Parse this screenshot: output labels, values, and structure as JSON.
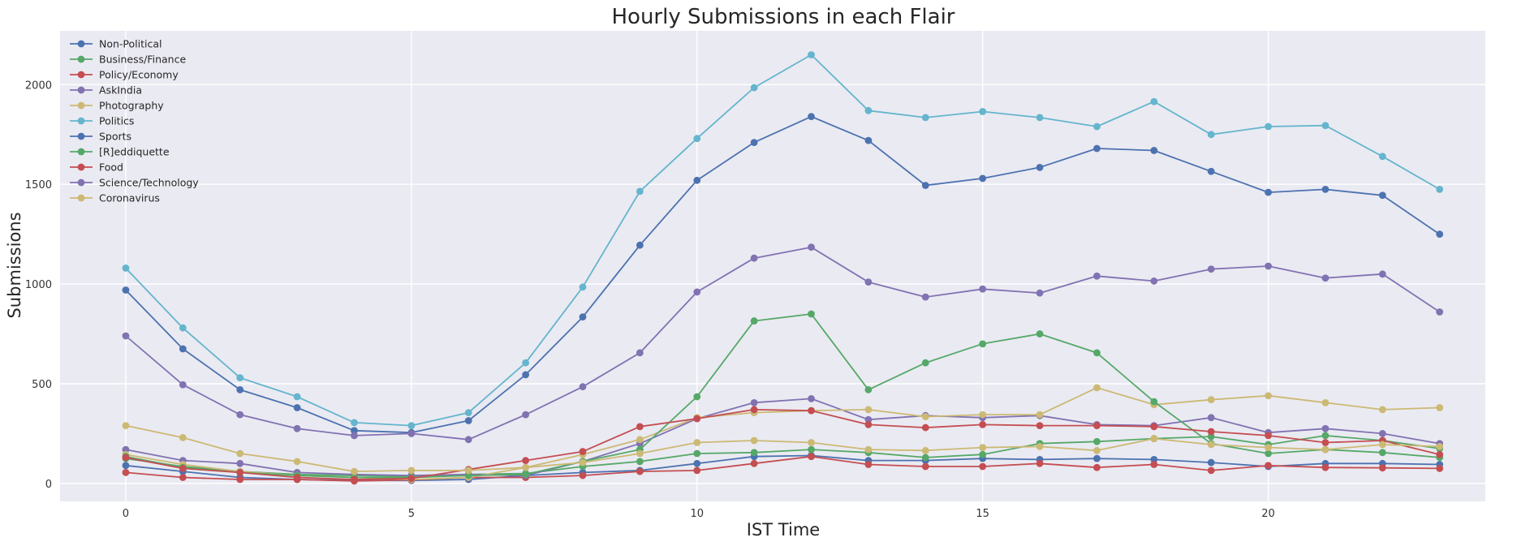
{
  "chart_data": {
    "type": "line",
    "title": "Hourly Submissions in each Flair",
    "xlabel": "IST Time",
    "ylabel": "Submissions",
    "x": [
      0,
      1,
      2,
      3,
      4,
      5,
      6,
      7,
      8,
      9,
      10,
      11,
      12,
      13,
      14,
      15,
      16,
      17,
      18,
      19,
      20,
      21,
      22,
      23
    ],
    "xlim": [
      -1.15,
      23.8
    ],
    "ylim": [
      -90,
      2270
    ],
    "xticks": [
      0,
      5,
      10,
      15,
      20
    ],
    "yticks": [
      0,
      500,
      1000,
      1500,
      2000
    ],
    "grid": true,
    "legend_position": "top-left",
    "series": [
      {
        "name": "Non-Political",
        "color": "#4C72B0",
        "values": [
          90,
          60,
          30,
          20,
          15,
          15,
          20,
          40,
          55,
          65,
          100,
          135,
          140,
          115,
          115,
          125,
          120,
          125,
          120,
          105,
          85,
          100,
          100,
          95
        ]
      },
      {
        "name": "Business/Finance",
        "color": "#55A868",
        "values": [
          125,
          85,
          60,
          45,
          40,
          35,
          45,
          50,
          85,
          110,
          150,
          155,
          170,
          155,
          130,
          145,
          200,
          210,
          225,
          235,
          195,
          240,
          215,
          175
        ]
      },
      {
        "name": "Policy/Economy",
        "color": "#C44E52",
        "values": [
          55,
          30,
          20,
          20,
          12,
          18,
          30,
          30,
          40,
          60,
          65,
          100,
          135,
          95,
          85,
          85,
          100,
          80,
          95,
          65,
          90,
          80,
          78,
          75
        ]
      },
      {
        "name": "AskIndia",
        "color": "#8172B2",
        "values": [
          170,
          115,
          100,
          55,
          45,
          40,
          45,
          40,
          110,
          200,
          325,
          405,
          425,
          320,
          340,
          330,
          340,
          295,
          290,
          330,
          255,
          275,
          250,
          200
        ]
      },
      {
        "name": "Photography",
        "color": "#CCB974",
        "values": [
          145,
          95,
          60,
          40,
          30,
          20,
          30,
          80,
          145,
          220,
          330,
          355,
          365,
          370,
          335,
          345,
          345,
          480,
          395,
          420,
          440,
          405,
          370,
          380
        ]
      },
      {
        "name": "Politics",
        "color": "#64B5CD",
        "values": [
          1080,
          780,
          530,
          435,
          305,
          290,
          355,
          605,
          985,
          1465,
          1730,
          1985,
          2150,
          1870,
          1835,
          1865,
          1835,
          1790,
          1915,
          1750,
          1790,
          1795,
          1640,
          1475
        ]
      },
      {
        "name": "Sports",
        "color": "#4C72B0",
        "values": [
          970,
          675,
          470,
          380,
          265,
          255,
          315,
          545,
          835,
          1195,
          1520,
          1710,
          1840,
          1720,
          1495,
          1530,
          1585,
          1680,
          1670,
          1565,
          1460,
          1475,
          1445,
          1250
        ]
      },
      {
        "name": "[R]eddiquette",
        "color": "#55A868",
        "values": [
          135,
          80,
          55,
          40,
          30,
          30,
          40,
          45,
          110,
          170,
          435,
          815,
          850,
          470,
          605,
          700,
          750,
          655,
          410,
          200,
          150,
          170,
          155,
          130
        ]
      },
      {
        "name": "Food",
        "color": "#C44E52",
        "values": [
          130,
          75,
          55,
          30,
          20,
          25,
          70,
          115,
          160,
          285,
          325,
          370,
          365,
          295,
          280,
          295,
          290,
          290,
          285,
          260,
          240,
          205,
          215,
          145
        ]
      },
      {
        "name": "Science/Technology",
        "color": "#8172B2",
        "values": [
          740,
          495,
          345,
          275,
          240,
          250,
          220,
          345,
          485,
          655,
          960,
          1130,
          1185,
          1010,
          935,
          975,
          955,
          1040,
          1015,
          1075,
          1090,
          1030,
          1050,
          860
        ]
      },
      {
        "name": "Coronavirus",
        "color": "#CCB974",
        "values": [
          290,
          230,
          150,
          110,
          60,
          65,
          65,
          80,
          105,
          150,
          205,
          215,
          205,
          170,
          165,
          180,
          185,
          165,
          225,
          195,
          180,
          170,
          195,
          185
        ]
      }
    ]
  }
}
